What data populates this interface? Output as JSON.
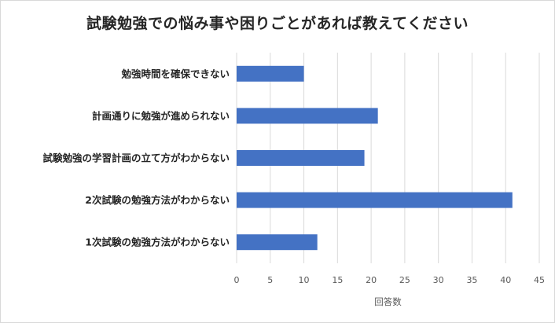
{
  "chart_data": {
    "type": "bar",
    "orientation": "horizontal",
    "title": "試験勉強での悩み事や困りごとがあれば教えてください",
    "xlabel": "回答数",
    "ylabel": "",
    "categories": [
      "勉強時間を確保できない",
      "計画通りに勉強が進められない",
      "試験勉強の学習計画の立て方がわからない",
      "2次試験の勉強方法がわからない",
      "1次試験の勉強方法がわからない"
    ],
    "values": [
      10,
      21,
      19,
      41,
      12
    ],
    "xlim": [
      0,
      45
    ],
    "xticks": [
      0,
      5,
      10,
      15,
      20,
      25,
      30,
      35,
      40,
      45
    ],
    "grid": "vertical",
    "legend": "none",
    "colors": {
      "bar": "#4472c4",
      "grid": "#d9d9d9",
      "text": "#262626",
      "tick": "#595959"
    }
  }
}
